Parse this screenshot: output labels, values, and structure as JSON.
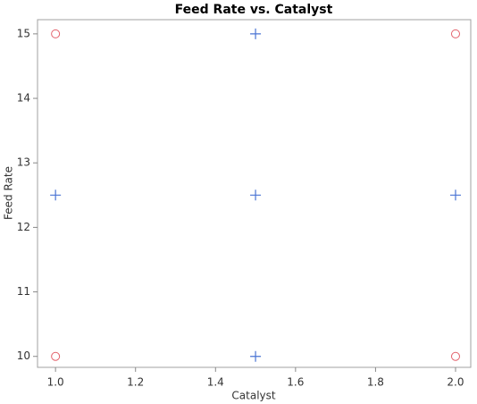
{
  "chart_data": {
    "type": "scatter",
    "title": "Feed Rate vs. Catalyst",
    "x_label": "Catalyst",
    "y_label": "Feed Rate",
    "series": [
      {
        "color": "#e3616b",
        "marker": "circle",
        "x": [
          1.0,
          2.0,
          1.0,
          2.0
        ],
        "values": [
          15,
          15,
          10,
          10
        ]
      },
      {
        "color": "#4a74d4",
        "marker": "plus",
        "x": [
          1.5,
          1.0,
          1.5,
          2.0,
          1.5
        ],
        "values": [
          15,
          12.5,
          12.5,
          12.5,
          10
        ]
      }
    ],
    "xlim": [
      0.955,
      2.038
    ],
    "ylim": [
      9.83,
      15.22
    ],
    "xticks": [
      {
        "value": 1.0,
        "label": "1.0"
      },
      1.2,
      1.4,
      1.6,
      1.8,
      {
        "value": 2.0,
        "label": "2.0"
      }
    ],
    "yticks": [
      10,
      11,
      12,
      13,
      14,
      15
    ]
  }
}
